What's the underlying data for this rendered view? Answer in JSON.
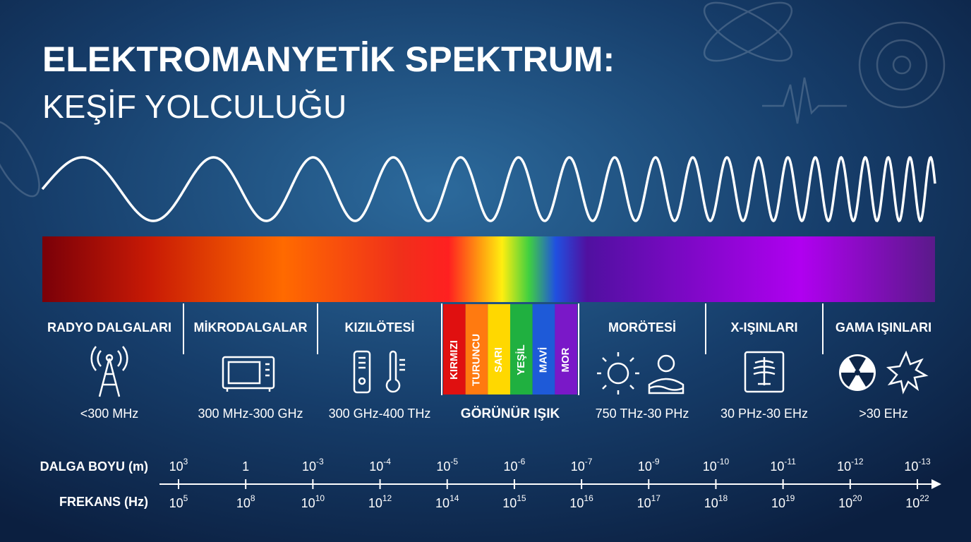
{
  "header": {
    "title": "ELEKTROMANYETİK SPEKTRUM:",
    "subtitle": "KEŞİF YOLCULUĞU"
  },
  "bands": [
    {
      "label": "RADYO DALGALARI",
      "range": "<300 MHz"
    },
    {
      "label": "MİKRODALGALAR",
      "range": "300 MHz-300 GHz"
    },
    {
      "label": "KIZILÖTESİ",
      "range": "300 GHz-400 THz"
    },
    {
      "label": "MORÖTESİ",
      "range": "750 THz-30 PHz"
    },
    {
      "label": "X-IŞINLARI",
      "range": "30 PHz-30 EHz"
    },
    {
      "label": "GAMA IŞINLARI",
      "range": ">30 EHz"
    }
  ],
  "visible": {
    "label": "GÖRÜNÜR IŞIK",
    "colors": [
      "KIRMIZI",
      "TURUNCU",
      "SARI",
      "YEŞİL",
      "MAVİ",
      "MOR"
    ]
  },
  "scale": {
    "wavelength_label": "DALGA BOYU (m)",
    "frequency_label": "FREKANS (Hz)",
    "wavelength": [
      {
        "base": "10",
        "exp": "3"
      },
      {
        "base": "1"
      },
      {
        "base": "10",
        "exp": "-3"
      },
      {
        "base": "10",
        "exp": "-4"
      },
      {
        "base": "10",
        "exp": "-5"
      },
      {
        "base": "10",
        "exp": "-6"
      },
      {
        "base": "10",
        "exp": "-7"
      },
      {
        "base": "10",
        "exp": "-9"
      },
      {
        "base": "10",
        "exp": "-10"
      },
      {
        "base": "10",
        "exp": "-11"
      },
      {
        "base": "10",
        "exp": "-12"
      },
      {
        "base": "10",
        "exp": "-13"
      }
    ],
    "frequency": [
      {
        "base": "10",
        "exp": "5"
      },
      {
        "base": "10",
        "exp": "8"
      },
      {
        "base": "10",
        "exp": "10"
      },
      {
        "base": "10",
        "exp": "12"
      },
      {
        "base": "10",
        "exp": "14"
      },
      {
        "base": "10",
        "exp": "15"
      },
      {
        "base": "10",
        "exp": "16"
      },
      {
        "base": "10",
        "exp": "17"
      },
      {
        "base": "10",
        "exp": "18"
      },
      {
        "base": "10",
        "exp": "19"
      },
      {
        "base": "10",
        "exp": "20"
      },
      {
        "base": "10",
        "exp": "22"
      }
    ]
  }
}
